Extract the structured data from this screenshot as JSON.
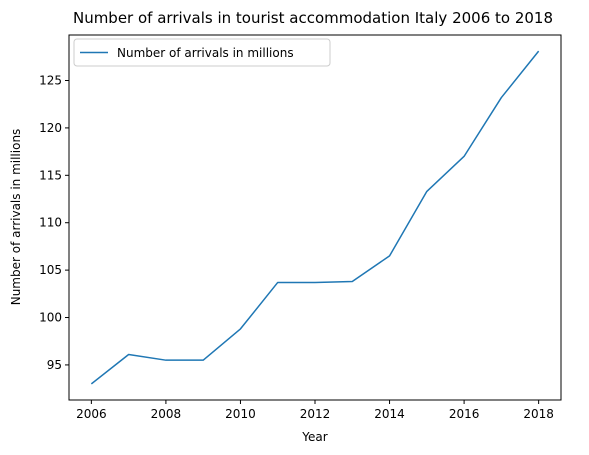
{
  "chart_data": {
    "type": "line",
    "title": "Number of arrivals in tourist accommodation Italy 2006 to 2018",
    "xlabel": "Year",
    "ylabel": "Number of arrivals in millions",
    "x": [
      2006,
      2007,
      2008,
      2009,
      2010,
      2011,
      2012,
      2013,
      2014,
      2015,
      2016,
      2017,
      2018
    ],
    "series": [
      {
        "name": "Number of arrivals in millions",
        "color": "#1f77b4",
        "values": [
          93.0,
          96.1,
          95.5,
          95.5,
          98.8,
          103.7,
          103.7,
          103.8,
          106.5,
          113.3,
          117.0,
          123.2,
          128.1
        ]
      }
    ],
    "xlim": [
      2005.4,
      2018.6
    ],
    "ylim": [
      91.3,
      129.8
    ],
    "xticks": [
      "2006",
      "2008",
      "2010",
      "2012",
      "2014",
      "2016",
      "2018"
    ],
    "yticks": [
      "95",
      "100",
      "105",
      "110",
      "115",
      "120",
      "125"
    ],
    "grid": false,
    "legend_position": "top-left"
  }
}
